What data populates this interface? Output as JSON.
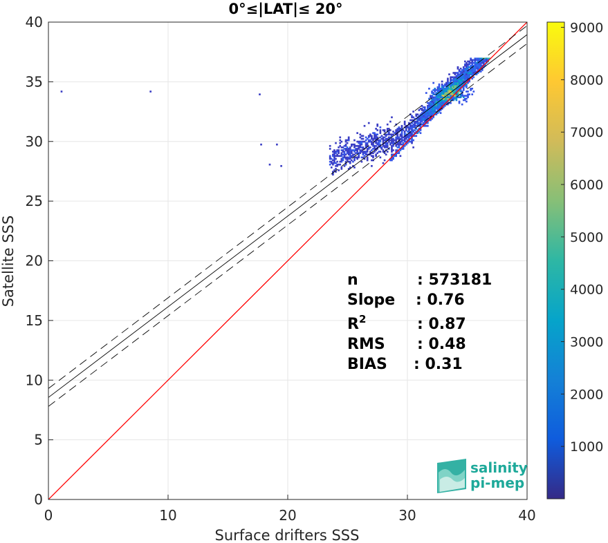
{
  "chart_data": {
    "type": "heatmap",
    "title": "0°≤|LAT|≤ 20°",
    "xlabel": "Surface drifters SSS",
    "ylabel": "Satellite SSS",
    "xlim": [
      0,
      40
    ],
    "ylim": [
      0,
      40
    ],
    "xticks": [
      0,
      10,
      20,
      30,
      40
    ],
    "yticks": [
      0,
      5,
      10,
      15,
      20,
      25,
      30,
      35,
      40
    ],
    "grid": true,
    "colorbar": {
      "colormap": "parula",
      "range": [
        0,
        9100
      ],
      "ticks": [
        1000,
        2000,
        3000,
        4000,
        5000,
        6000,
        7000,
        8000,
        9000
      ]
    },
    "identity_line": {
      "color": "#ff0000",
      "x": [
        0,
        40
      ],
      "y": [
        0,
        40
      ]
    },
    "regression_line": {
      "slope": 0.76,
      "intercept": 8.55,
      "color": "#000000"
    },
    "regression_band": {
      "offset": 0.75,
      "dash": true,
      "color": "#000000"
    },
    "density_peak": {
      "x": 33.5,
      "y": 33.8
    },
    "stats": [
      {
        "label": "n",
        "sep": ": ",
        "value": "573181"
      },
      {
        "label": "Slope",
        "sep": ": ",
        "value": "0.76"
      },
      {
        "label": "R",
        "sup": "2",
        "sep": ": ",
        "value": "0.87"
      },
      {
        "label": "RMS",
        "sep": ": ",
        "value": "0.48"
      },
      {
        "label": "BIAS",
        "sep": ": ",
        "value": "0.31"
      }
    ]
  },
  "logo": {
    "line1": "salinity",
    "line2": "pi-mep"
  },
  "colors": {
    "identity": "#ff0000",
    "regression": "#000000",
    "grid": "#e6e6e6",
    "logo": "#1ea99a"
  }
}
